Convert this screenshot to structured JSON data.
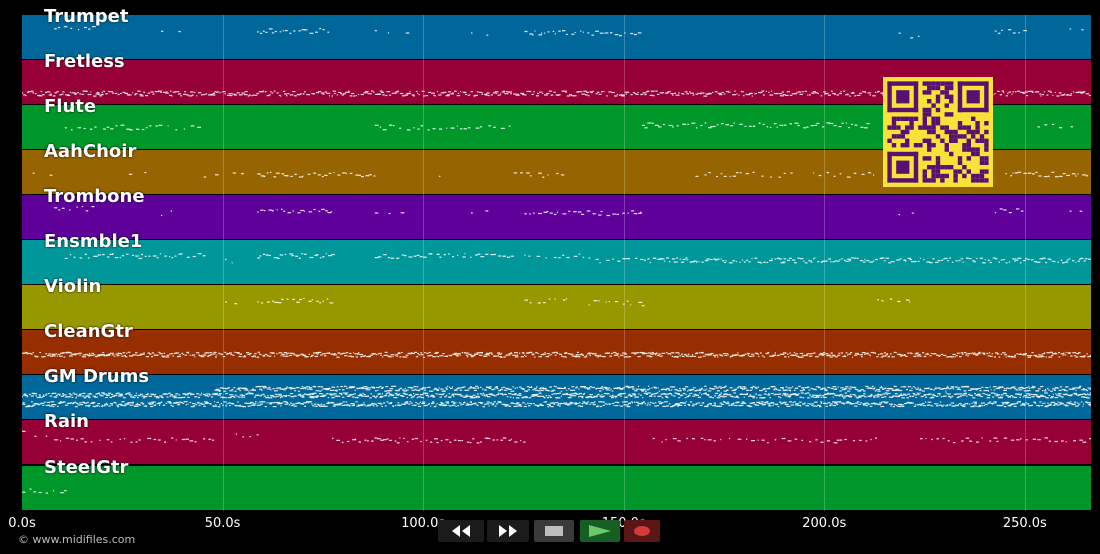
{
  "tracks": [
    {
      "name": "Trumpet",
      "color": "#00679b"
    },
    {
      "name": "Fretless",
      "color": "#970037"
    },
    {
      "name": "Flute",
      "color": "#00972a"
    },
    {
      "name": "AahChoir",
      "color": "#966400"
    },
    {
      "name": "Trombone",
      "color": "#5f009b"
    },
    {
      "name": "Ensmble1",
      "color": "#00979b"
    },
    {
      "name": "Violin",
      "color": "#979700"
    },
    {
      "name": "CleanGtr",
      "color": "#962e00"
    },
    {
      "name": "GM Drums",
      "color": "#00679b"
    },
    {
      "name": "Rain",
      "color": "#970037"
    },
    {
      "name": "SteelGtr",
      "color": "#00972a"
    }
  ],
  "timeline": {
    "ticks": [
      "0.0s",
      "50.0s",
      "100.0s",
      "150.0s",
      "200.0s",
      "250.0s"
    ],
    "tick_seconds": [
      0,
      50,
      100,
      150,
      200,
      250
    ],
    "duration_seconds": 266.5
  },
  "copyright": "© www.midifiles.com",
  "controls": {
    "rewind_icon": "rewind-icon",
    "fast_forward_icon": "fast-forward-icon",
    "stop_icon": "stop-icon",
    "play_icon": "play-icon",
    "record_icon": "record-icon"
  },
  "qr_code": {
    "icon": "qr-code-icon",
    "fg": "#5a1070",
    "bg": "#f7e23a"
  }
}
